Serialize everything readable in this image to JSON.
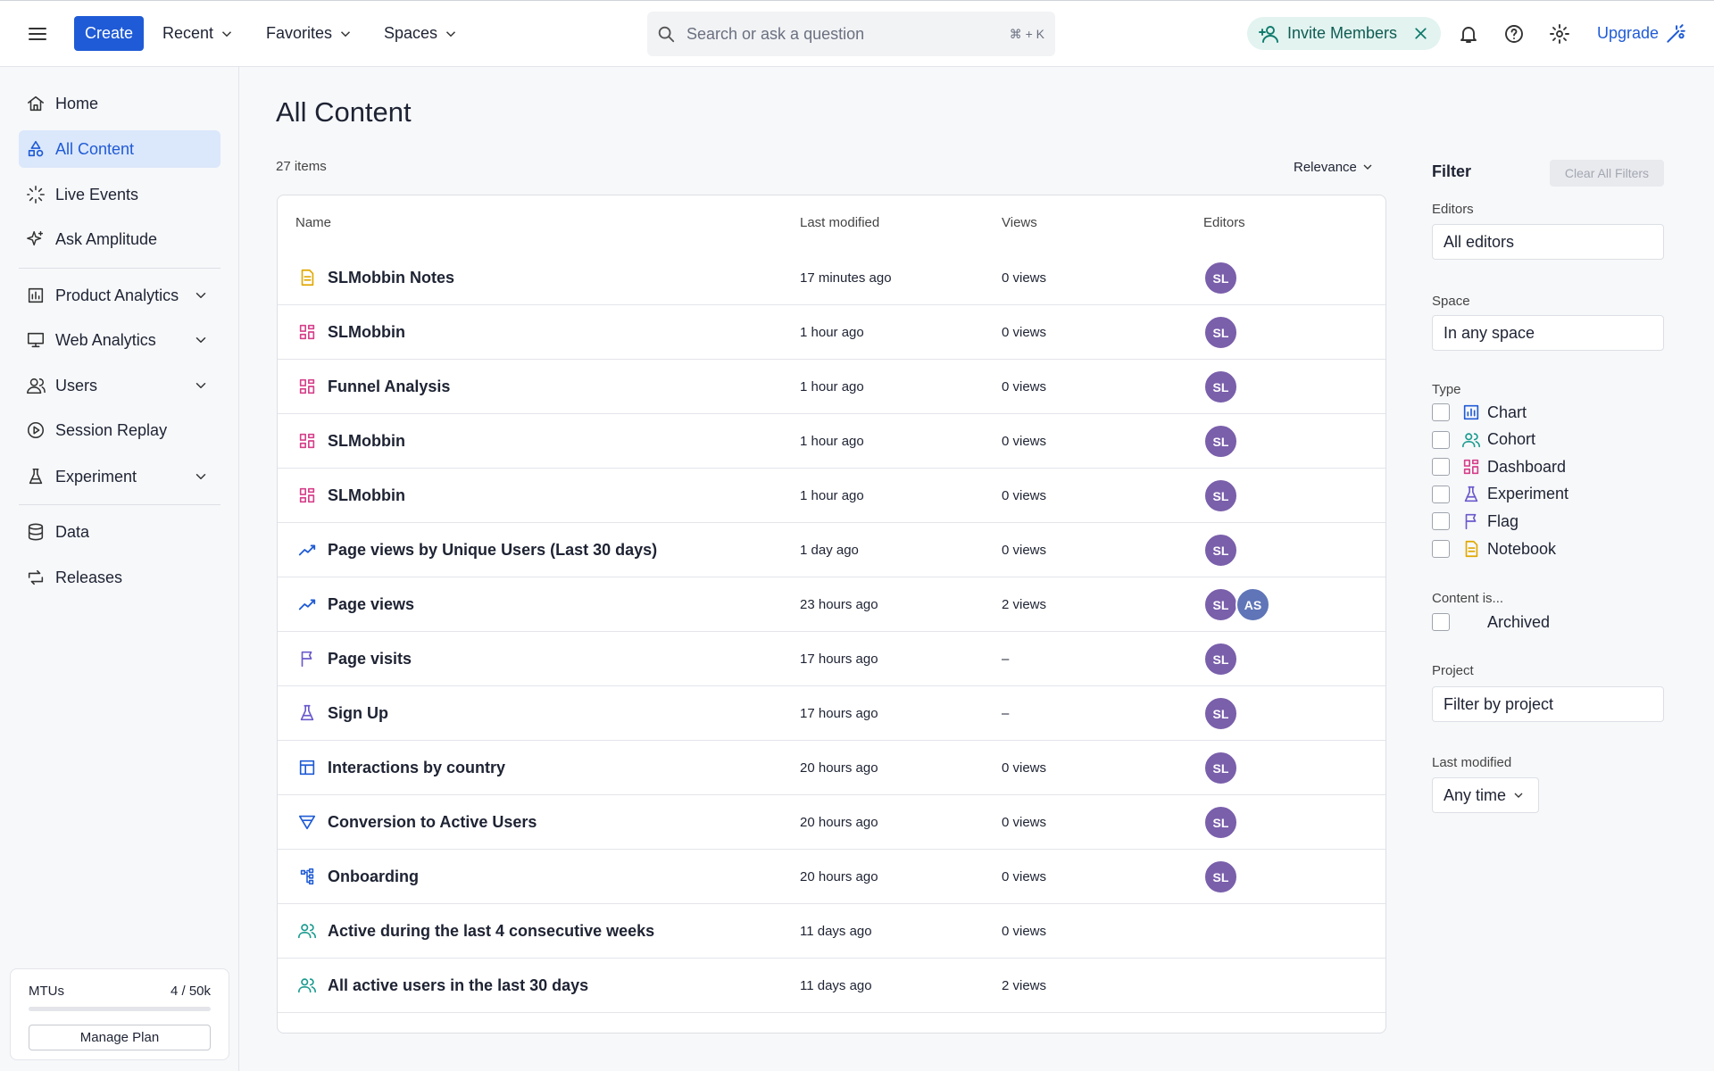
{
  "topbar": {
    "create": "Create",
    "menus": [
      "Recent",
      "Favorites",
      "Spaces"
    ],
    "search": "Search or ask a question",
    "shortcut": "⌘ + K",
    "invite": "Invite Members",
    "upgrade": "Upgrade"
  },
  "sidebar": {
    "items": [
      "Home",
      "All Content",
      "Live Events",
      "Ask Amplitude",
      "Product Analytics",
      "Web Analytics",
      "Users",
      "Session Replay",
      "Experiment",
      "Data",
      "Releases"
    ],
    "plan": {
      "label": "MTUs",
      "usage": "4 / 50k",
      "button": "Manage Plan"
    }
  },
  "content": {
    "title": "All Content",
    "count": "27 items",
    "sort": "Relevance",
    "columns": [
      "Name",
      "Last modified",
      "Views",
      "Editors"
    ],
    "rows": [
      {
        "name": "SLMobbin Notes",
        "modified": "17 minutes ago",
        "views": "0 views",
        "editors": [
          "SL"
        ]
      },
      {
        "name": "SLMobbin",
        "modified": "1 hour ago",
        "views": "0 views",
        "editors": [
          "SL"
        ]
      },
      {
        "name": "Funnel Analysis",
        "modified": "1 hour ago",
        "views": "0 views",
        "editors": [
          "SL"
        ]
      },
      {
        "name": "SLMobbin",
        "modified": "1 hour ago",
        "views": "0 views",
        "editors": [
          "SL"
        ]
      },
      {
        "name": "SLMobbin",
        "modified": "1 hour ago",
        "views": "0 views",
        "editors": [
          "SL"
        ]
      },
      {
        "name": "Page views by Unique Users (Last 30 days)",
        "modified": "1 day ago",
        "views": "0 views",
        "editors": [
          "SL"
        ]
      },
      {
        "name": "Page views",
        "modified": "23 hours ago",
        "views": "2 views",
        "editors": [
          "SL",
          "AS"
        ]
      },
      {
        "name": "Page visits",
        "modified": "17 hours ago",
        "views": "–",
        "editors": [
          "SL"
        ]
      },
      {
        "name": "Sign Up",
        "modified": "17 hours ago",
        "views": "–",
        "editors": [
          "SL"
        ]
      },
      {
        "name": "Interactions by country",
        "modified": "20 hours ago",
        "views": "0 views",
        "editors": [
          "SL"
        ]
      },
      {
        "name": "Conversion to Active Users",
        "modified": "20 hours ago",
        "views": "0 views",
        "editors": [
          "SL"
        ]
      },
      {
        "name": "Onboarding",
        "modified": "20 hours ago",
        "views": "0 views",
        "editors": [
          "SL"
        ]
      },
      {
        "name": "Active during the last 4 consecutive weeks",
        "modified": "11 days ago",
        "views": "0 views",
        "editors": []
      },
      {
        "name": "All active users in the last 30 days",
        "modified": "11 days ago",
        "views": "2 views",
        "editors": []
      }
    ]
  },
  "filter": {
    "title": "Filter",
    "clear": "Clear All Filters",
    "editors_label": "Editors",
    "editors_value": "All editors",
    "space_label": "Space",
    "space_value": "In any space",
    "type_label": "Type",
    "types": [
      "Chart",
      "Cohort",
      "Dashboard",
      "Experiment",
      "Flag",
      "Notebook"
    ],
    "content_label": "Content is...",
    "archived": "Archived",
    "project_label": "Project",
    "project_value": "Filter by project",
    "modified_label": "Last modified",
    "modified_value": "Any time"
  }
}
